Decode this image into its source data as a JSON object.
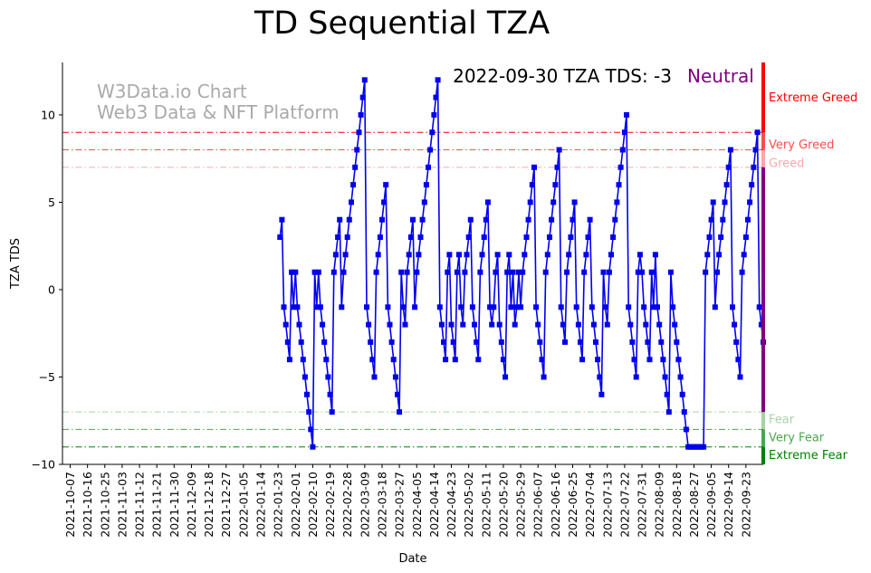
{
  "chart_data": {
    "type": "line",
    "title": "TD Sequential TZA",
    "xlabel": "Date",
    "ylabel": "TZA TDS",
    "ylim": [
      -10,
      13
    ],
    "yticks": [
      -10,
      -5,
      0,
      5,
      10
    ],
    "ytick_labels": [
      "−10",
      "−5",
      "0",
      "5",
      "10"
    ],
    "start_date": "2021-10-03",
    "xtick_step_days": 9,
    "x_end_index": 364,
    "xtick_labels": [
      "2021-10-07",
      "2021-10-16",
      "2021-10-25",
      "2021-11-03",
      "2021-11-12",
      "2021-11-21",
      "2021-11-30",
      "2021-12-09",
      "2021-12-18",
      "2021-12-27",
      "2022-01-05",
      "2022-01-14",
      "2022-01-23",
      "2022-02-01",
      "2022-02-10",
      "2022-02-19",
      "2022-02-28",
      "2022-03-09",
      "2022-03-18",
      "2022-03-27",
      "2022-04-05",
      "2022-04-14",
      "2022-04-23",
      "2022-05-02",
      "2022-05-11",
      "2022-05-20",
      "2022-05-29",
      "2022-06-07",
      "2022-06-16",
      "2022-06-25",
      "2022-07-04",
      "2022-07-13",
      "2022-07-22",
      "2022-07-31",
      "2022-08-09",
      "2022-08-18",
      "2022-08-27",
      "2022-09-05",
      "2022-09-14",
      "2022-09-23"
    ],
    "series": [
      {
        "name": "TZA TDS",
        "color": "#0000ee",
        "values": [
          3,
          4,
          -1,
          -2,
          -3,
          -4,
          1,
          -1,
          1,
          -1,
          -2,
          -3,
          -4,
          -5,
          -6,
          -7,
          -8,
          -9,
          1,
          -1,
          1,
          -1,
          -2,
          -3,
          -4,
          -5,
          -6,
          -7,
          1,
          2,
          3,
          4,
          -1,
          1,
          2,
          3,
          4,
          5,
          6,
          7,
          8,
          9,
          10,
          11,
          12,
          -1,
          -2,
          -3,
          -4,
          -5,
          1,
          2,
          3,
          4,
          5,
          6,
          -1,
          -2,
          -3,
          -4,
          -5,
          -6,
          -7,
          1,
          -1,
          -2,
          1,
          2,
          3,
          4,
          -1,
          1,
          2,
          3,
          4,
          5,
          6,
          7,
          8,
          9,
          10,
          11,
          12,
          -1,
          -2,
          -3,
          -4,
          1,
          2,
          -2,
          -3,
          -4,
          1,
          2,
          -1,
          -2,
          1,
          2,
          3,
          4,
          -1,
          -2,
          -3,
          -4,
          1,
          2,
          3,
          4,
          5,
          -1,
          -2,
          -1,
          1,
          2,
          -2,
          -3,
          -4,
          -5,
          1,
          2,
          -1,
          1,
          -2,
          -1,
          1,
          -1,
          1,
          2,
          3,
          4,
          5,
          6,
          7,
          -1,
          -2,
          -3,
          -4,
          -5,
          1,
          2,
          3,
          4,
          5,
          6,
          7,
          8,
          -1,
          -2,
          -3,
          1,
          2,
          3,
          4,
          5,
          -1,
          -2,
          -3,
          -4,
          1,
          2,
          3,
          4,
          -1,
          -2,
          -3,
          -4,
          -5,
          -6,
          1,
          -1,
          -2,
          1,
          2,
          3,
          4,
          5,
          6,
          7,
          8,
          9,
          10,
          -1,
          -2,
          -3,
          -4,
          -5,
          1,
          2,
          1,
          -1,
          -2,
          -3,
          -4,
          1,
          -1,
          2,
          -1,
          -2,
          -3,
          -4,
          -5,
          -6,
          -7,
          1,
          -1,
          -2,
          -3,
          -4,
          -5,
          -6,
          -7,
          -8,
          -9,
          -9,
          -9,
          -9,
          -9,
          -9,
          -9,
          -9,
          -9,
          1,
          2,
          3,
          4,
          5,
          -1,
          1,
          2,
          3,
          4,
          5,
          6,
          7,
          8,
          -1,
          -2,
          -3,
          -4,
          -5,
          1,
          2,
          3,
          4,
          5,
          6,
          7,
          8,
          9,
          -1,
          -2,
          -3
        ]
      }
    ],
    "thresholds": [
      {
        "value": 9,
        "label": "Extreme Greed",
        "color": "#ff0000",
        "opacity": 1.0
      },
      {
        "value": 8,
        "label": "Very Greed",
        "color": "#ff0000",
        "opacity": 0.7
      },
      {
        "value": 7,
        "label": "Greed",
        "color": "#ff0000",
        "opacity": 0.35
      },
      {
        "value": -7,
        "label": "Fear",
        "color": "#008000",
        "opacity": 0.35
      },
      {
        "value": -8,
        "label": "Very Fear",
        "color": "#008000",
        "opacity": 0.7
      },
      {
        "value": -9,
        "label": "Extreme Fear",
        "color": "#008000",
        "opacity": 1.0
      }
    ],
    "side_band": [
      {
        "from": 9,
        "to": 13,
        "color": "#ff0000",
        "opacity": 1.0
      },
      {
        "from": 8,
        "to": 9,
        "color": "#ff0000",
        "opacity": 0.7
      },
      {
        "from": 7,
        "to": 8,
        "color": "#ff0000",
        "opacity": 0.35
      },
      {
        "from": -7,
        "to": 7,
        "color": "#800080",
        "opacity": 1.0
      },
      {
        "from": -8,
        "to": -7,
        "color": "#008000",
        "opacity": 0.35
      },
      {
        "from": -9,
        "to": -8,
        "color": "#008000",
        "opacity": 0.7
      },
      {
        "from": -10,
        "to": -9,
        "color": "#008000",
        "opacity": 1.0
      }
    ],
    "status_text": "2022-09-30 TZA TDS: -3",
    "status_label": "Neutral",
    "status_color": "#800080",
    "watermark": [
      "W3Data.io Chart",
      "Web3 Data & NFT Platform"
    ]
  }
}
